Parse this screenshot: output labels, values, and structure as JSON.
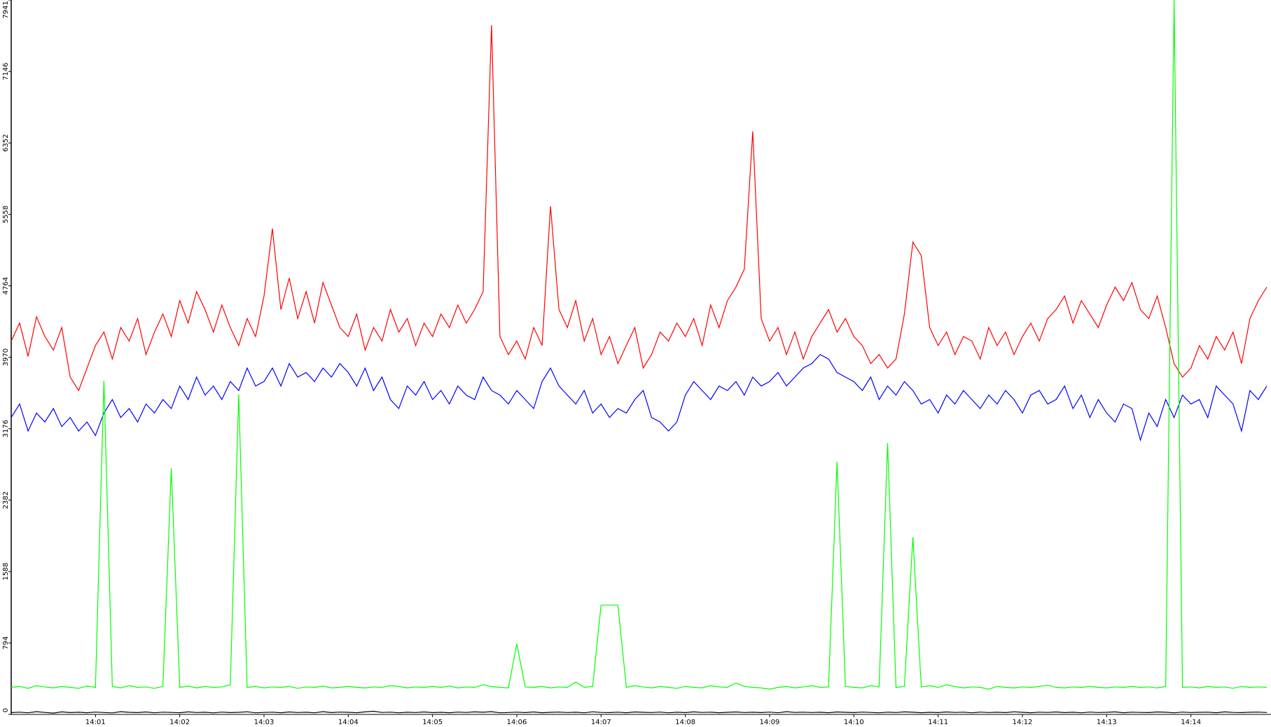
{
  "chart_data": {
    "type": "line",
    "categories": [
      null,
      null,
      null,
      null,
      null,
      null,
      null,
      null,
      null,
      null,
      "14:01",
      null,
      null,
      null,
      null,
      null,
      null,
      null,
      null,
      null,
      "14:02",
      null,
      null,
      null,
      null,
      null,
      null,
      null,
      null,
      null,
      "14:03",
      null,
      null,
      null,
      null,
      null,
      null,
      null,
      null,
      null,
      "14:04",
      null,
      null,
      null,
      null,
      null,
      null,
      null,
      null,
      null,
      "14:05",
      null,
      null,
      null,
      null,
      null,
      null,
      null,
      null,
      null,
      "14:06",
      null,
      null,
      null,
      null,
      null,
      null,
      null,
      null,
      null,
      "14:07",
      null,
      null,
      null,
      null,
      null,
      null,
      null,
      null,
      null,
      "14:08",
      null,
      null,
      null,
      null,
      null,
      null,
      null,
      null,
      null,
      "14:09",
      null,
      null,
      null,
      null,
      null,
      null,
      null,
      null,
      null,
      "14:10",
      null,
      null,
      null,
      null,
      null,
      null,
      null,
      null,
      null,
      "14:11",
      null,
      null,
      null,
      null,
      null,
      null,
      null,
      null,
      null,
      "14:12",
      null,
      null,
      null,
      null,
      null,
      null,
      null,
      null,
      null,
      "14:13",
      null,
      null,
      null,
      null,
      null,
      null,
      null,
      null,
      null,
      "14:14",
      null,
      null,
      null,
      null,
      null,
      null,
      null,
      null,
      null
    ],
    "series": [
      {
        "color": "#ff0000",
        "values": [
          4150,
          4350,
          3980,
          4420,
          4200,
          4050,
          4300,
          3750,
          3600,
          3850,
          4100,
          4250,
          3950,
          4300,
          4150,
          4400,
          4000,
          4250,
          4450,
          4200,
          4600,
          4350,
          4700,
          4500,
          4250,
          4550,
          4300,
          4100,
          4400,
          4200,
          4650,
          5400,
          4500,
          4850,
          4400,
          4700,
          4350,
          4800,
          4550,
          4300,
          4200,
          4450,
          4050,
          4300,
          4150,
          4500,
          4250,
          4400,
          4100,
          4350,
          4200,
          4450,
          4300,
          4550,
          4350,
          4500,
          4700,
          7662,
          4200,
          4000,
          4150,
          3950,
          4300,
          4100,
          5650,
          4500,
          4300,
          4600,
          4150,
          4400,
          4000,
          4200,
          3900,
          4100,
          4300,
          3850,
          4000,
          4250,
          4150,
          4350,
          4200,
          4400,
          4100,
          4550,
          4300,
          4600,
          4750,
          4950,
          6480,
          4400,
          4150,
          4300,
          4000,
          4250,
          3950,
          4200,
          4350,
          4500,
          4250,
          4400,
          4200,
          4100,
          3900,
          4000,
          3850,
          3950,
          4450,
          5250,
          5100,
          4300,
          4100,
          4250,
          4000,
          4200,
          4150,
          3950,
          4300,
          4100,
          4250,
          4000,
          4200,
          4350,
          4150,
          4400,
          4500,
          4650,
          4350,
          4600,
          4450,
          4300,
          4550,
          4750,
          4600,
          4800,
          4500,
          4400,
          4650,
          4300,
          3900,
          3750,
          3850,
          4100,
          3950,
          4200,
          4050,
          4250,
          3900,
          4400,
          4600,
          4750
        ]
      },
      {
        "color": "#0000ff",
        "values": [
          3300,
          3450,
          3150,
          3350,
          3250,
          3400,
          3200,
          3300,
          3150,
          3250,
          3100,
          3350,
          3500,
          3300,
          3400,
          3250,
          3450,
          3350,
          3500,
          3400,
          3650,
          3500,
          3750,
          3550,
          3650,
          3500,
          3700,
          3600,
          3850,
          3650,
          3700,
          3850,
          3650,
          3900,
          3750,
          3800,
          3700,
          3850,
          3750,
          3900,
          3800,
          3650,
          3850,
          3600,
          3750,
          3500,
          3400,
          3650,
          3550,
          3700,
          3500,
          3600,
          3450,
          3650,
          3550,
          3500,
          3750,
          3600,
          3550,
          3450,
          3600,
          3500,
          3400,
          3700,
          3850,
          3650,
          3550,
          3450,
          3600,
          3350,
          3450,
          3300,
          3400,
          3350,
          3500,
          3600,
          3300,
          3250,
          3150,
          3250,
          3550,
          3700,
          3600,
          3500,
          3650,
          3600,
          3700,
          3550,
          3750,
          3650,
          3700,
          3800,
          3650,
          3750,
          3850,
          3900,
          4000,
          3950,
          3800,
          3750,
          3700,
          3600,
          3750,
          3500,
          3650,
          3550,
          3700,
          3600,
          3450,
          3500,
          3350,
          3550,
          3450,
          3600,
          3500,
          3400,
          3550,
          3450,
          3600,
          3500,
          3350,
          3550,
          3600,
          3450,
          3500,
          3650,
          3400,
          3550,
          3300,
          3500,
          3350,
          3250,
          3450,
          3400,
          3050,
          3350,
          3200,
          3500,
          3300,
          3550,
          3450,
          3500,
          3300,
          3650,
          3550,
          3450,
          3150,
          3600,
          3500,
          3650
        ]
      },
      {
        "color": "#00ff00",
        "values": [
          300,
          310,
          290,
          320,
          305,
          295,
          310,
          300,
          290,
          315,
          300,
          3709,
          310,
          295,
          320,
          300,
          305,
          290,
          310,
          2737,
          300,
          315,
          295,
          310,
          300,
          305,
          330,
          3557,
          300,
          310,
          295,
          305,
          300,
          310,
          290,
          305,
          300,
          315,
          295,
          300,
          310,
          300,
          295,
          305,
          300,
          320,
          310,
          295,
          305,
          300,
          310,
          300,
          315,
          295,
          305,
          300,
          330,
          310,
          300,
          295,
          783,
          305,
          300,
          310,
          295,
          305,
          300,
          360,
          300,
          310,
          1215,
          1215,
          1215,
          300,
          320,
          305,
          295,
          310,
          300,
          290,
          310,
          300,
          295,
          320,
          305,
          300,
          350,
          310,
          300,
          295,
          280,
          300,
          310,
          295,
          305,
          320,
          300,
          305,
          2809,
          310,
          300,
          295,
          320,
          305,
          3016,
          300,
          310,
          1972,
          305,
          320,
          300,
          330,
          310,
          295,
          305,
          300,
          280,
          310,
          300,
          295,
          305,
          300,
          310,
          325,
          300,
          295,
          305,
          300,
          310,
          300,
          295,
          305,
          300,
          310,
          300,
          305,
          295,
          310,
          7941,
          300,
          305,
          295,
          310,
          300,
          305,
          290,
          310,
          300,
          305,
          300
        ]
      },
      {
        "color": "#000000",
        "values": [
          20,
          25,
          18,
          30,
          22,
          15,
          28,
          20,
          24,
          19,
          26,
          21,
          17,
          30,
          23,
          20,
          27,
          18,
          25,
          22,
          19,
          28,
          21,
          24,
          17,
          26,
          20,
          23,
          29,
          18,
          22,
          25,
          19,
          27,
          21,
          24,
          18,
          30,
          20,
          26,
          23,
          19,
          28,
          35,
          22,
          25,
          18,
          24,
          21,
          27,
          20,
          23,
          19,
          26,
          22,
          28,
          24,
          30,
          18,
          21,
          25,
          20,
          27,
          19,
          23,
          26,
          21,
          24,
          18,
          29,
          22,
          20,
          25,
          19,
          27,
          23,
          21,
          26,
          18,
          24,
          20,
          28,
          22,
          25,
          19,
          23,
          27,
          21,
          24,
          20,
          26,
          18,
          30,
          22,
          25,
          21,
          24,
          19,
          27,
          23,
          20,
          26,
          22,
          18,
          25,
          21,
          28,
          24,
          19,
          23,
          20,
          27,
          22,
          25,
          18,
          26,
          21,
          24,
          20,
          29,
          23,
          19,
          25,
          22,
          27,
          20,
          24,
          18,
          26,
          21,
          23,
          28,
          19,
          25,
          22,
          20,
          27,
          24,
          18,
          26,
          21,
          23,
          25,
          19,
          28,
          22,
          20,
          24,
          26,
          21
        ]
      }
    ],
    "ylim": [
      0,
      7941
    ],
    "yticks": [
      0,
      794,
      1588,
      2382,
      3176,
      3970,
      4764,
      5558,
      6352,
      7146,
      7941
    ]
  }
}
